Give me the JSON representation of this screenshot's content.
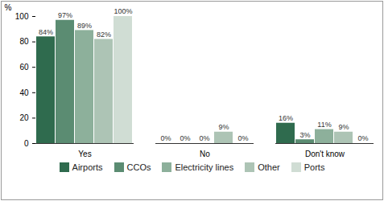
{
  "chart_data": {
    "type": "bar",
    "categories": [
      "Yes",
      "No",
      "Don't know"
    ],
    "series": [
      {
        "name": "Airports",
        "color": "#2f6b4e",
        "values": [
          84,
          0,
          16
        ],
        "value_labels": [
          "84%",
          "0%",
          "16%"
        ]
      },
      {
        "name": "CCOs",
        "color": "#5b8c72",
        "values": [
          97,
          0,
          3
        ],
        "value_labels": [
          "97%",
          "0%",
          "3%"
        ]
      },
      {
        "name": "Electricity lines",
        "color": "#8db09b",
        "values": [
          89,
          0,
          11
        ],
        "value_labels": [
          "89%",
          "0%",
          "11%"
        ]
      },
      {
        "name": "Other",
        "color": "#adc4b5",
        "values": [
          82,
          9,
          9
        ],
        "value_labels": [
          "82%",
          "9%",
          "9%"
        ]
      },
      {
        "name": "Ports",
        "color": "#d0ddd4",
        "values": [
          100,
          0,
          0
        ],
        "value_labels": [
          "100%",
          "0%",
          "0%"
        ]
      }
    ],
    "y_label": "%",
    "ylim": [
      0,
      100
    ],
    "yticks": [
      0,
      20,
      40,
      60,
      80,
      100
    ],
    "grid": false,
    "data_labels": true,
    "legend": "bottom"
  }
}
